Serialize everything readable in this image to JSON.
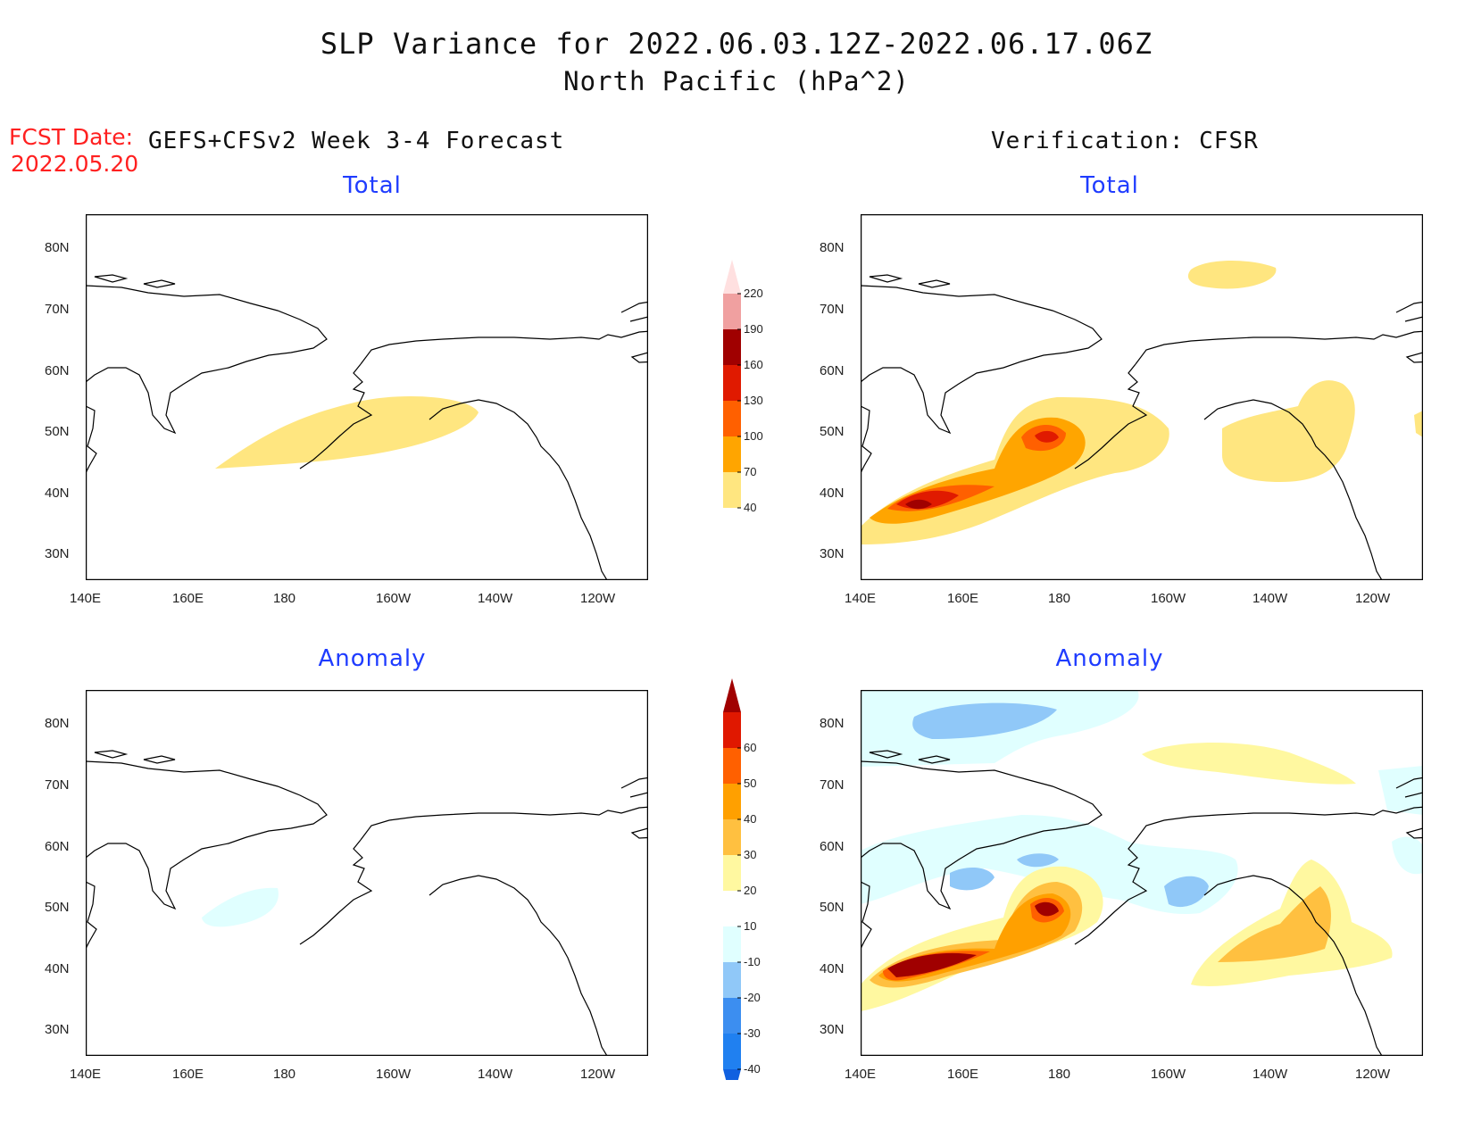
{
  "header": {
    "title": "SLP Variance for 2022.06.03.12Z-2022.06.17.06Z",
    "subtitle": "North Pacific (hPa^2)",
    "fcst_label": "FCST Date:",
    "fcst_date": "2022.05.20",
    "left_heading": "GEFS+CFSv2 Week 3-4 Forecast",
    "right_heading": "Verification: CFSR"
  },
  "panels": {
    "top_left_title": "Total",
    "top_right_title": "Total",
    "bottom_left_title": "Anomaly",
    "bottom_right_title": "Anomaly"
  },
  "axes": {
    "lat_labels": [
      "80N",
      "70N",
      "60N",
      "50N",
      "40N",
      "30N"
    ],
    "lon_labels": [
      "140E",
      "160E",
      "180",
      "160W",
      "140W",
      "120W"
    ]
  },
  "colorbar_total": {
    "levels": [
      "40",
      "70",
      "100",
      "130",
      "160",
      "190",
      "220"
    ],
    "colors": [
      "#ffe680",
      "#ffa500",
      "#ff6000",
      "#e01a00",
      "#a00000",
      "#f0a0a0",
      "#ffe0e0"
    ]
  },
  "colorbar_anomaly": {
    "levels": [
      "-40",
      "-30",
      "-20",
      "-10",
      "10",
      "20",
      "30",
      "40",
      "50",
      "60"
    ],
    "colors": [
      "#1060e0",
      "#2080f0",
      "#3c8ef0",
      "#90c8f8",
      "#e0ffff",
      "#ffffff",
      "#fff8a0",
      "#ffc040",
      "#ffa000",
      "#ff6000",
      "#e01800",
      "#a00000"
    ]
  },
  "chart_data": [
    {
      "type": "map",
      "panel": "GEFS+CFSv2 Week 3-4 Forecast - Total",
      "lat_range": [
        "30N",
        "80N"
      ],
      "lon_range": [
        "140E",
        "120W"
      ],
      "shaded_regions": [
        {
          "level": "40-70",
          "area": "central North Pacific south of Aleutians"
        }
      ]
    },
    {
      "type": "map",
      "panel": "Verification: CFSR - Total",
      "shaded_regions": [
        {
          "level": "40-70",
          "area": "Arctic Ocean north of Alaska"
        },
        {
          "level": "40-160",
          "area": "Kuroshio extension to Aleutians, max >160 near 38N 157E"
        },
        {
          "level": "40-70",
          "area": "northeast Pacific off North America"
        }
      ]
    },
    {
      "type": "map",
      "panel": "GEFS+CFSv2 Week 3-4 Forecast - Anomaly",
      "shaded_regions": [
        {
          "level": "-20 to -10",
          "area": "near 47N 170E"
        }
      ]
    },
    {
      "type": "map",
      "panel": "Verification: CFSR - Anomaly",
      "shaded_regions": [
        {
          "level": "> 60",
          "area": "near 38N 155E and 48N 176E"
        },
        {
          "level": "20-40",
          "area": "off US west coast"
        },
        {
          "level": "-20 to -10",
          "area": "Arctic, Gulf of Alaska, Bering Sea"
        }
      ]
    }
  ]
}
